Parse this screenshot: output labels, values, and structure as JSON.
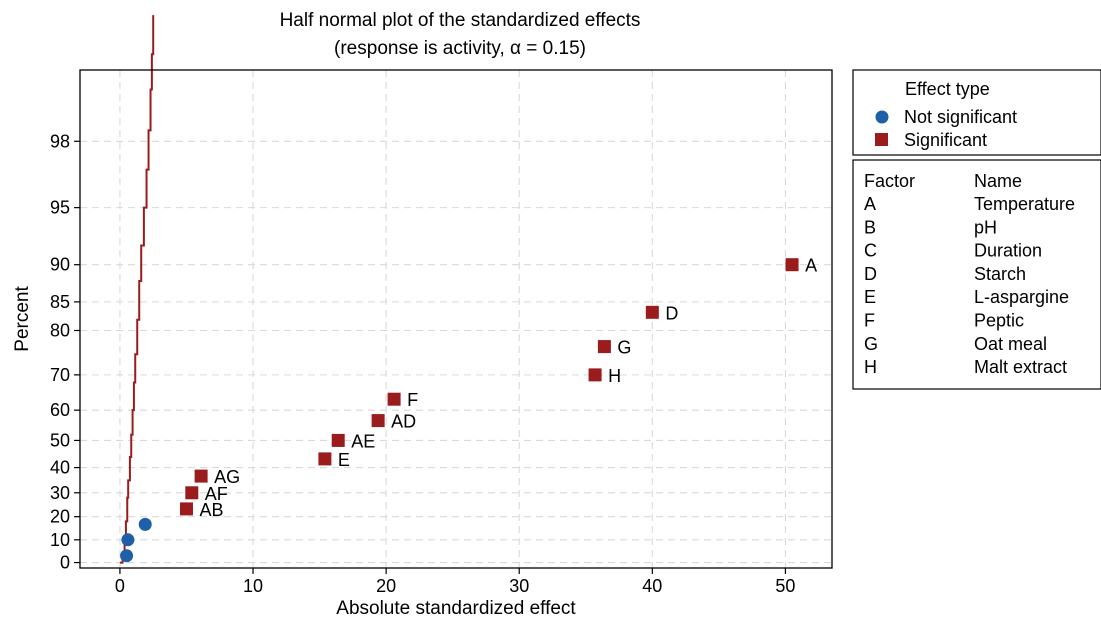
{
  "chart_data": {
    "type": "scatter",
    "title": "Half normal plot of the standardized effects",
    "subtitle": "(response is activity, α = 0.15)",
    "xlabel": "Absolute standardized effect",
    "ylabel": "Percent",
    "xlim": [
      -3,
      53.5
    ],
    "xticks": [
      0,
      10,
      20,
      30,
      40,
      50
    ],
    "yticks": [
      0,
      10,
      20,
      30,
      40,
      50,
      60,
      70,
      80,
      85,
      90,
      95,
      98
    ],
    "y_scale": "half-normal probability",
    "grid": true,
    "legend": {
      "title": "Effect type",
      "placement": "right",
      "entries": [
        {
          "name": "Not significant",
          "color": "#1f5fa8",
          "shape": "circle"
        },
        {
          "name": "Significant",
          "color": "#9b1c1c",
          "shape": "square"
        }
      ]
    },
    "factor_table": {
      "header_factor": "Factor",
      "header_name": "Name",
      "rows": [
        {
          "factor": "A",
          "name": "Temperature"
        },
        {
          "factor": "B",
          "name": "pH"
        },
        {
          "factor": "C",
          "name": "Duration"
        },
        {
          "factor": "D",
          "name": "Starch"
        },
        {
          "factor": "E",
          "name": "L-aspargine"
        },
        {
          "factor": "F",
          "name": "Peptic"
        },
        {
          "factor": "G",
          "name": "Oat meal"
        },
        {
          "factor": "H",
          "name": "Malt extract"
        }
      ]
    },
    "series": [
      {
        "name": "Not significant",
        "color": "#1f5fa8",
        "points": [
          {
            "x": 0.5,
            "y": 3,
            "label": ""
          },
          {
            "x": 0.6,
            "y": 10,
            "label": ""
          },
          {
            "x": 1.9,
            "y": 16.7,
            "label": ""
          }
        ]
      },
      {
        "name": "Significant",
        "color": "#9b1c1c",
        "points": [
          {
            "x": 5.0,
            "y": 23.3,
            "label": "AB"
          },
          {
            "x": 5.4,
            "y": 30,
            "label": "AF"
          },
          {
            "x": 6.1,
            "y": 36.7,
            "label": "AG"
          },
          {
            "x": 15.4,
            "y": 43.3,
            "label": "E"
          },
          {
            "x": 16.4,
            "y": 50,
            "label": "AE"
          },
          {
            "x": 19.4,
            "y": 56.7,
            "label": "AD"
          },
          {
            "x": 20.6,
            "y": 63.3,
            "label": "F"
          },
          {
            "x": 35.7,
            "y": 70,
            "label": "H"
          },
          {
            "x": 36.4,
            "y": 76.7,
            "label": "G"
          },
          {
            "x": 40.0,
            "y": 83.3,
            "label": "D"
          },
          {
            "x": 50.5,
            "y": 90,
            "label": "A"
          }
        ]
      }
    ],
    "reference_line": {
      "color": "#9b1c1c",
      "label": ""
    }
  }
}
